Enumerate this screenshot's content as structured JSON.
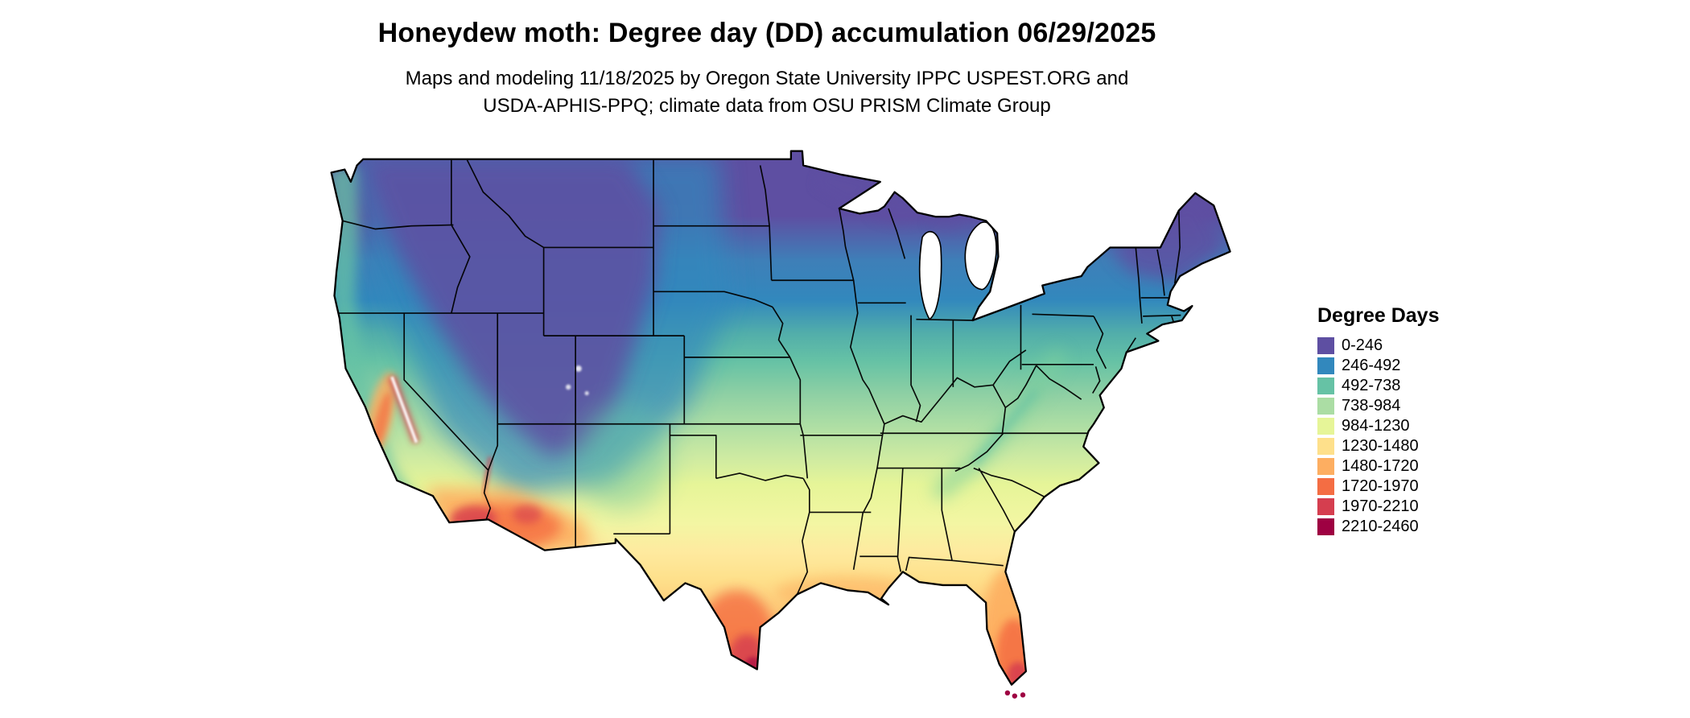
{
  "header": {
    "title": "Honeydew moth: Degree day (DD) accumulation 06/29/2025",
    "subtitle_line1": "Maps and modeling 11/18/2025 by Oregon State University IPPC USPEST.ORG and",
    "subtitle_line2": "USDA-APHIS-PPQ; climate data from OSU PRISM Climate Group"
  },
  "legend": {
    "title": "Degree Days",
    "items": [
      {
        "label": "0-246",
        "color": "#5e4fa2"
      },
      {
        "label": "246-492",
        "color": "#3288bd"
      },
      {
        "label": "492-738",
        "color": "#66c2a5"
      },
      {
        "label": "738-984",
        "color": "#abdda4"
      },
      {
        "label": "984-1230",
        "color": "#e6f598"
      },
      {
        "label": "1230-1480",
        "color": "#fee08b"
      },
      {
        "label": "1480-1720",
        "color": "#fdae61"
      },
      {
        "label": "1720-1970",
        "color": "#f46d43"
      },
      {
        "label": "1970-2210",
        "color": "#d53e4f"
      },
      {
        "label": "2210-2460",
        "color": "#9e0142"
      }
    ]
  },
  "map": {
    "region_label": "Continental United States"
  }
}
